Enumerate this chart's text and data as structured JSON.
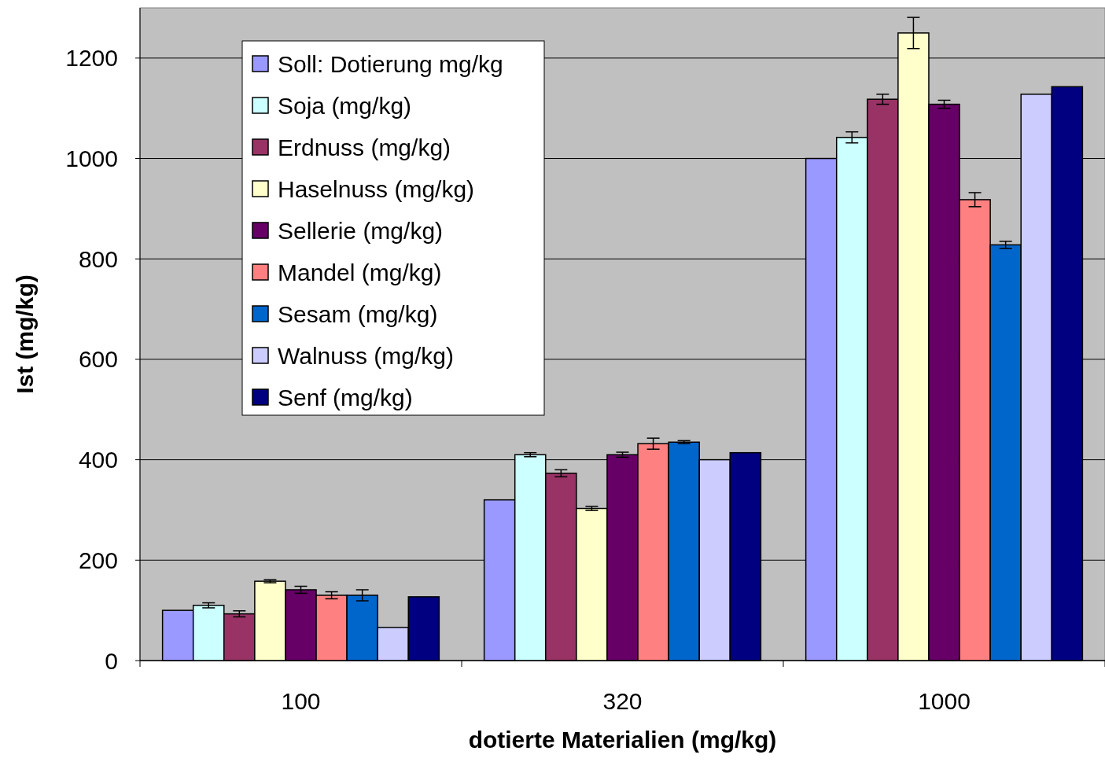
{
  "chart_data": {
    "type": "bar",
    "xlabel": "dotierte Materialien (mg/kg)",
    "ylabel": "Ist (mg/kg)",
    "categories": [
      "100",
      "320",
      "1000"
    ],
    "ylim": [
      0,
      1300
    ],
    "yticks": [
      0,
      200,
      400,
      600,
      800,
      1000,
      1200
    ],
    "grid": "y",
    "legend": "top left",
    "series": [
      {
        "name": "Soll: Dotierung mg/kg",
        "color": "#9999ff",
        "values": [
          100,
          320,
          1000
        ]
      },
      {
        "name": "Soja (mg/kg)",
        "color": "#ccffff",
        "values": [
          110,
          410,
          1042
        ],
        "errors": [
          5,
          4,
          11
        ]
      },
      {
        "name": "Erdnuss (mg/kg)",
        "color": "#993366",
        "values": [
          93,
          373,
          1118
        ],
        "errors": [
          6,
          7,
          10
        ]
      },
      {
        "name": "Haselnuss (mg/kg)",
        "color": "#ffffcc",
        "values": [
          158,
          303,
          1250
        ],
        "errors": [
          3,
          4,
          31
        ]
      },
      {
        "name": "Sellerie (mg/kg)",
        "color": "#660066",
        "values": [
          141,
          410,
          1108
        ],
        "errors": [
          7,
          5,
          8
        ]
      },
      {
        "name": "Mandel (mg/kg)",
        "color": "#ff8080",
        "values": [
          130,
          432,
          918
        ],
        "errors": [
          7,
          11,
          14
        ]
      },
      {
        "name": "Sesam (mg/kg)",
        "color": "#0066cc",
        "values": [
          130,
          435,
          828
        ],
        "errors": [
          11,
          3,
          7
        ]
      },
      {
        "name": "Walnuss (mg/kg)",
        "color": "#ccccff",
        "values": [
          66,
          400,
          1128
        ]
      },
      {
        "name": "Senf (mg/kg)",
        "color": "#000080",
        "values": [
          127,
          414,
          1143
        ]
      }
    ]
  }
}
